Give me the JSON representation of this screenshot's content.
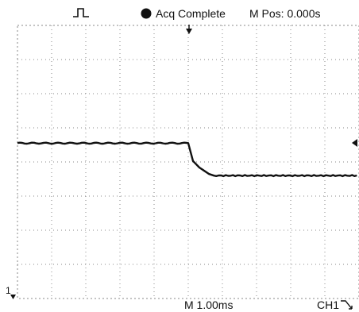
{
  "header": {
    "trigger_icon": "pulse-trigger-icon",
    "status_icon": "filled-circle-icon",
    "status_text": "Acq Complete",
    "mpos_text": "M Pos: 0.000s"
  },
  "footer": {
    "timebase_text": "M 1.00ms",
    "channel_text": "CH1",
    "channel_slope_icon": "falling-edge-icon"
  },
  "markers": {
    "trigger_position_icon": "down-arrow-icon",
    "trigger_level_icon": "left-arrow-icon",
    "channel_ground_label": "1"
  },
  "colors": {
    "trace": "#111111",
    "grid": "#8a8a8a",
    "background": "#ffffff"
  },
  "waveform": {
    "description_free": true,
    "divisions_x": 10,
    "divisions_y": 8,
    "high_level_div": 4.55,
    "low_level_div": 3.6,
    "fall_start_div": 5.0,
    "fall_end_div": 5.75
  }
}
